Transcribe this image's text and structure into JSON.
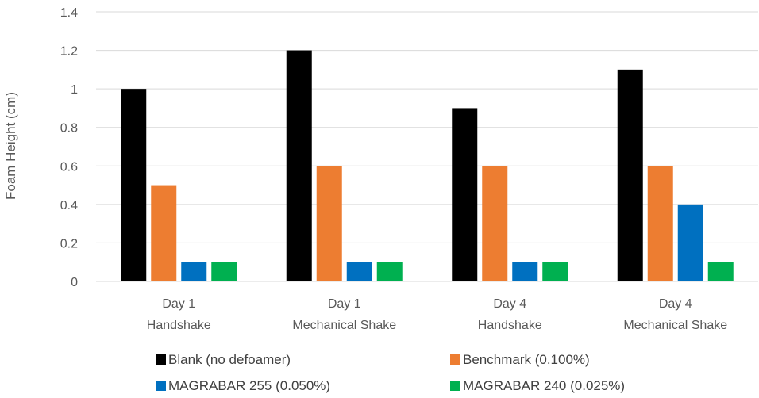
{
  "chart_data": {
    "type": "bar",
    "title": "",
    "xlabel": "",
    "ylabel": "Foam Height (cm)",
    "ylim": [
      0,
      1.4
    ],
    "yticks": [
      0,
      0.2,
      0.4,
      0.6,
      0.8,
      1,
      1.2,
      1.4
    ],
    "ytick_labels": [
      "0",
      "0.2",
      "0.4",
      "0.6",
      "0.8",
      "1",
      "1.2",
      "1.4"
    ],
    "grid": true,
    "legend_position": "bottom",
    "categories": [
      [
        "Day 1",
        "Handshake"
      ],
      [
        "Day 1",
        "Mechanical Shake"
      ],
      [
        "Day 4",
        "Handshake"
      ],
      [
        "Day 4",
        "Mechanical Shake"
      ]
    ],
    "series": [
      {
        "name": "Blank (no defoamer)",
        "color": "#000000",
        "values": [
          1.0,
          1.2,
          0.9,
          1.1
        ]
      },
      {
        "name": "Benchmark (0.100%)",
        "color": "#ED7D31",
        "values": [
          0.5,
          0.6,
          0.6,
          0.6
        ]
      },
      {
        "name": "MAGRABAR 255 (0.050%)",
        "color": "#0070C0",
        "values": [
          0.1,
          0.1,
          0.1,
          0.4
        ]
      },
      {
        "name": "MAGRABAR 240 (0.025%)",
        "color": "#00B050",
        "values": [
          0.1,
          0.1,
          0.1,
          0.1
        ]
      }
    ]
  }
}
